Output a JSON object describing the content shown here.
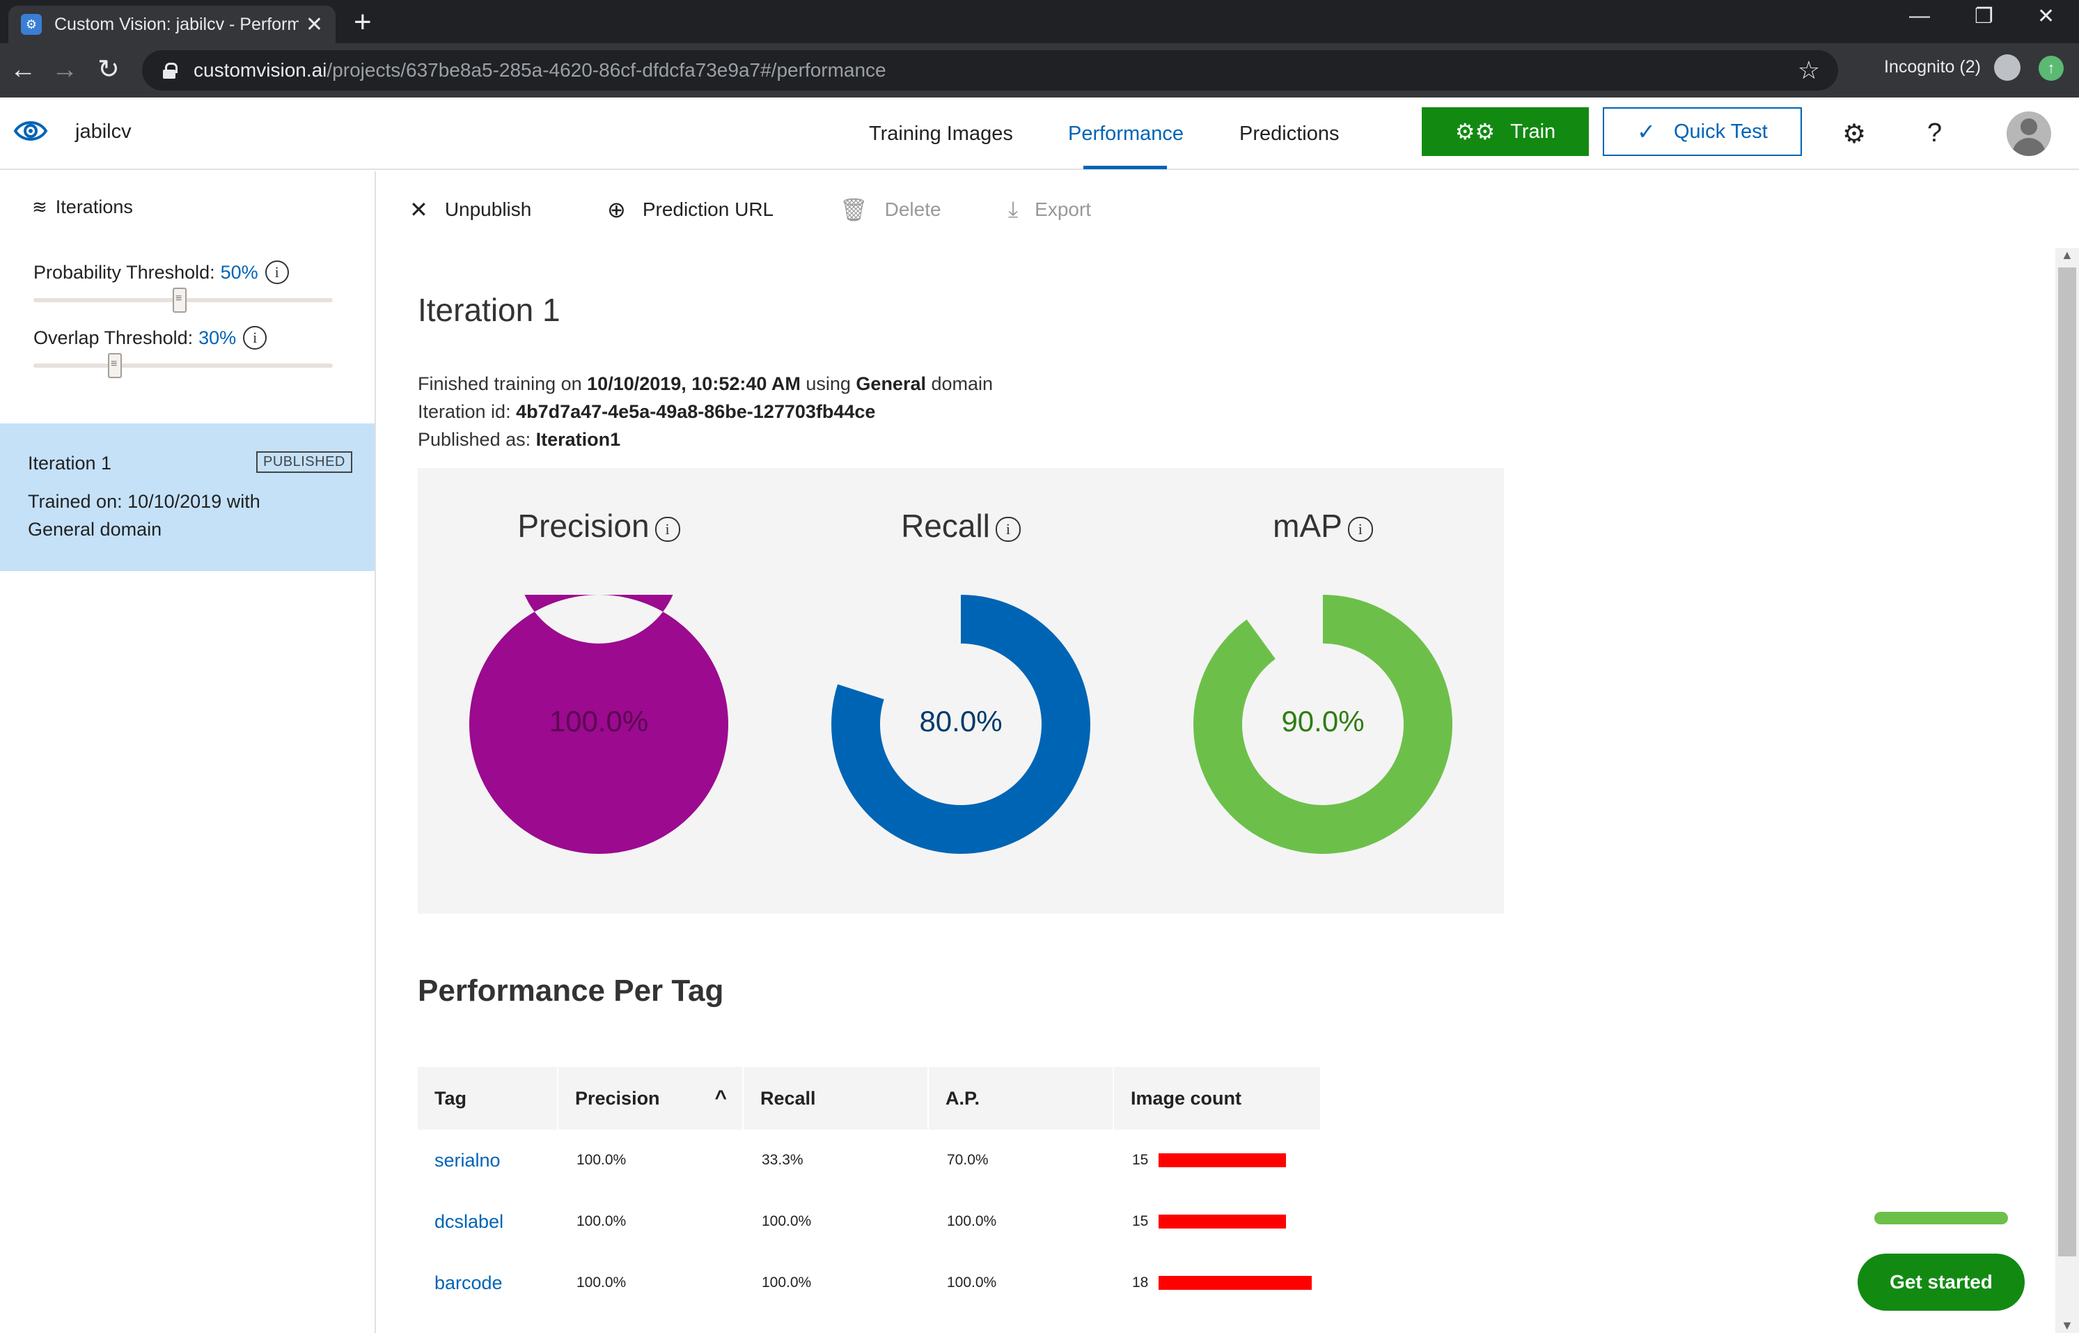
{
  "browser": {
    "tab_title": "Custom Vision: jabilcv - Performa",
    "url_host": "customvision.ai",
    "url_path": "/projects/637be8a5-285a-4620-86cf-dfdcfa73e9a7#/performance",
    "incognito_label": "Incognito (2)"
  },
  "header": {
    "project_name": "jabilcv",
    "nav": [
      "Training Images",
      "Performance",
      "Predictions"
    ],
    "active_nav": "Performance",
    "train_label": "Train",
    "quick_test_label": "Quick Test"
  },
  "sidebar": {
    "iterations_label": "Iterations",
    "probability_threshold": {
      "label": "Probability Threshold:",
      "value": "50%",
      "level": 0.5
    },
    "overlap_threshold": {
      "label": "Overlap Threshold:",
      "value": "30%",
      "level": 0.3
    },
    "iteration_item": {
      "name": "Iteration 1",
      "badge": "PUBLISHED",
      "desc": "Trained on: 10/10/2019 with General domain"
    }
  },
  "commands": {
    "unpublish": "Unpublish",
    "prediction_url": "Prediction URL",
    "delete": "Delete",
    "export": "Export"
  },
  "iteration": {
    "title": "Iteration 1",
    "finished_prefix": "Finished training on ",
    "finished_date": "10/10/2019, 10:52:40 AM",
    "finished_mid": " using ",
    "domain": "General",
    "finished_suffix": " domain",
    "id_label": "Iteration id: ",
    "id_value": "4b7d7a47-4e5a-49a8-86be-127703fb44ce",
    "published_label": "Published as: ",
    "published_value": "Iteration1"
  },
  "metrics": [
    {
      "label": "Precision",
      "value_text": "100.0%",
      "fraction": 1.0,
      "color": "#9b0a8f",
      "text_color": "#5a0652"
    },
    {
      "label": "Recall",
      "value_text": "80.0%",
      "fraction": 0.8,
      "color": "#0064b5",
      "text_color": "#003a6b"
    },
    {
      "label": "mAP",
      "value_text": "90.0%",
      "fraction": 0.9,
      "color": "#6cc04a",
      "text_color": "#2e7d0f"
    }
  ],
  "per_tag": {
    "title": "Performance Per Tag",
    "columns": [
      "Tag",
      "Precision",
      "Recall",
      "A.P.",
      "Image count"
    ],
    "rows": [
      {
        "tag": "serialno",
        "precision": "100.0%",
        "recall": "33.3%",
        "ap": "70.0%",
        "count": "15",
        "count_value": 15
      },
      {
        "tag": "dcslabel",
        "precision": "100.0%",
        "recall": "100.0%",
        "ap": "100.0%",
        "count": "15",
        "count_value": 15
      },
      {
        "tag": "barcode",
        "precision": "100.0%",
        "recall": "100.0%",
        "ap": "100.0%",
        "count": "18",
        "count_value": 18
      }
    ],
    "max_count": 18,
    "bar_color": "#ff0000"
  },
  "get_started_label": "Get started"
}
